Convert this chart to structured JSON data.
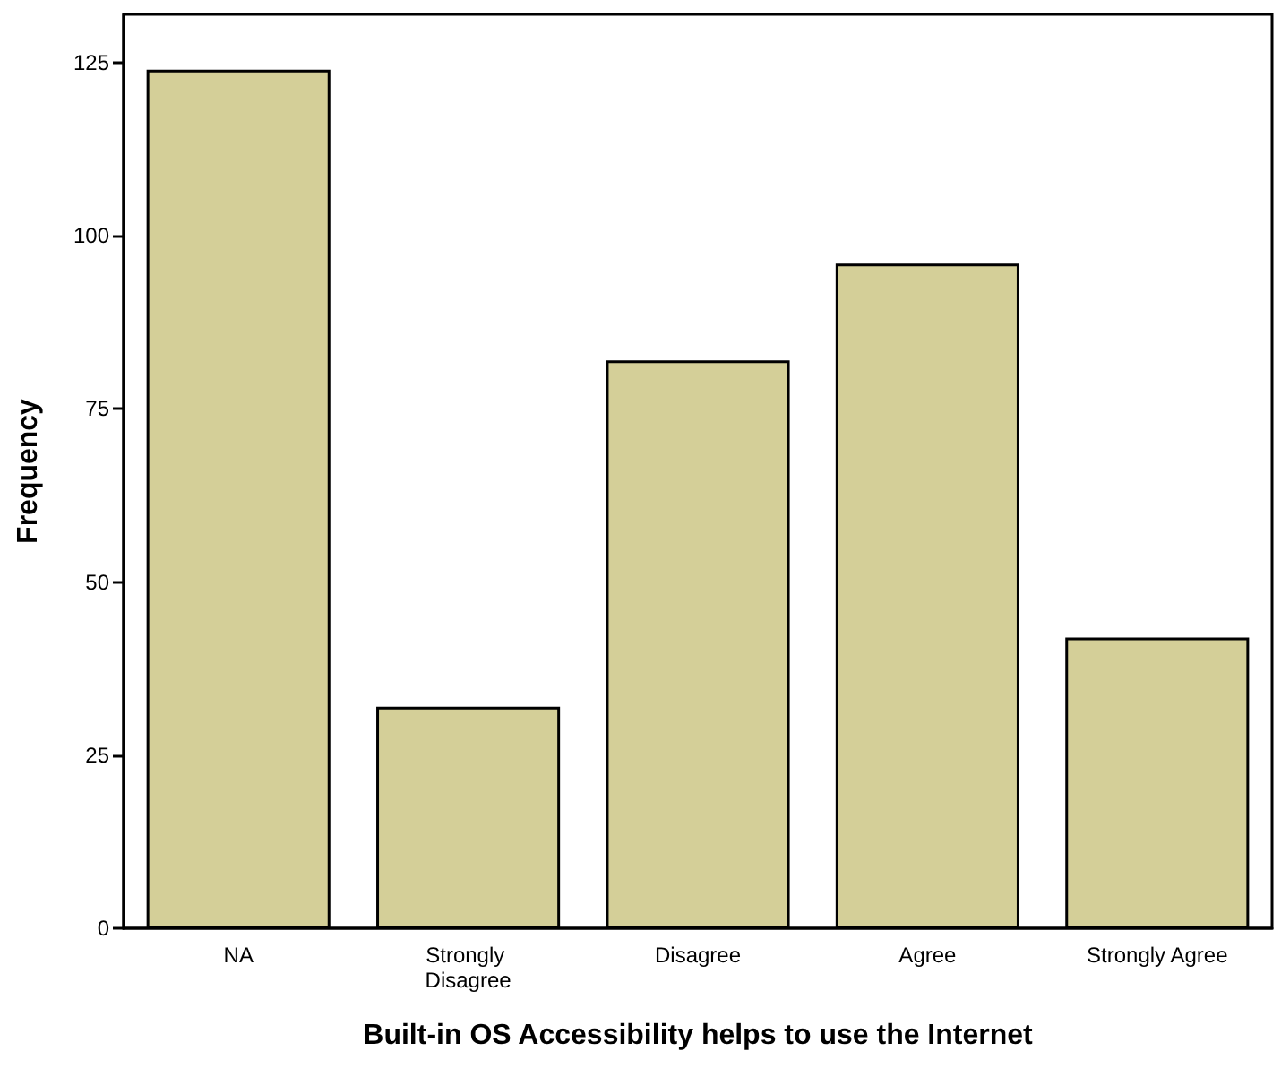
{
  "chart_data": {
    "type": "bar",
    "xlabel": "Built-in OS Accessibility helps to use the Internet",
    "ylabel": "Frequency",
    "categories": [
      "NA",
      "Strongly Disagree",
      "Disagree",
      "Agree",
      "Strongly Agree"
    ],
    "values": [
      124,
      32,
      82,
      96,
      42
    ],
    "color": "#d4cf98",
    "ylim": [
      0,
      132
    ],
    "yticks": [
      0,
      25,
      50,
      75,
      100,
      125
    ]
  }
}
